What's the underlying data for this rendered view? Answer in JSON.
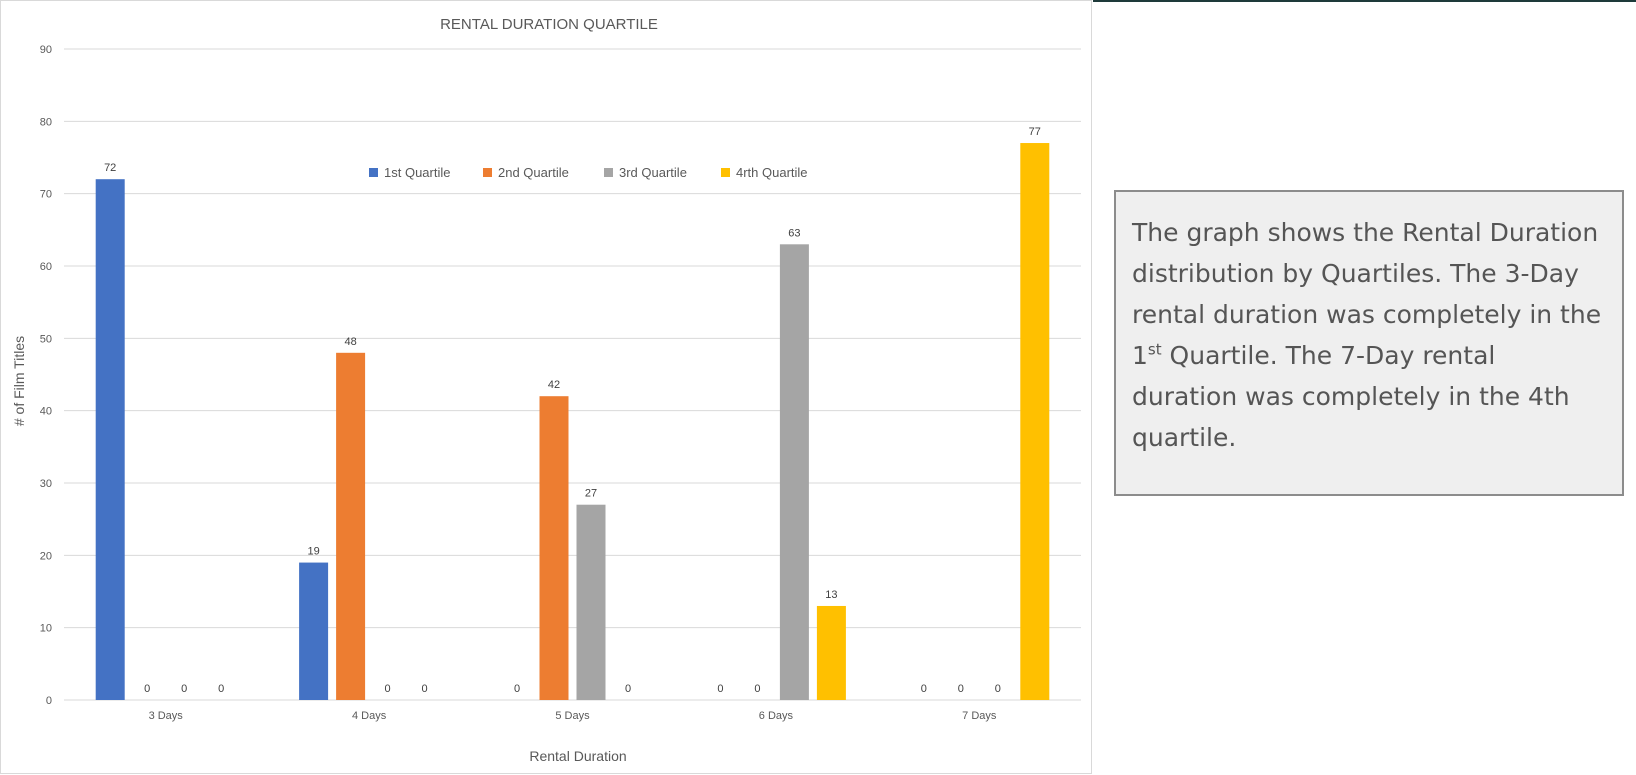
{
  "chart_data": {
    "type": "bar",
    "title": "RENTAL DURATION QUARTILE",
    "xlabel": "Rental Duration",
    "ylabel": "# of Film Titles",
    "ylim": [
      0,
      90
    ],
    "ytick_step": 10,
    "yticks": [
      "0",
      "10",
      "20",
      "30",
      "40",
      "50",
      "60",
      "70",
      "80",
      "90"
    ],
    "grid": true,
    "legend_position": "top-center",
    "categories": [
      "3 Days",
      "4 Days",
      "5 Days",
      "6 Days",
      "7 Days"
    ],
    "series": [
      {
        "name": "1st Quartile",
        "color": "#4472c4",
        "values": [
          72,
          19,
          0,
          0,
          0
        ]
      },
      {
        "name": "2nd Quartile",
        "color": "#ed7d31",
        "values": [
          0,
          48,
          42,
          0,
          0
        ]
      },
      {
        "name": "3rd Quartile",
        "color": "#a5a5a5",
        "values": [
          0,
          0,
          27,
          63,
          0
        ]
      },
      {
        "name": "4rth Quartile",
        "color": "#ffc000",
        "values": [
          0,
          0,
          0,
          13,
          77
        ]
      }
    ]
  },
  "note": {
    "part1": "The graph shows the Rental Duration distribution by Quartiles. The 3-Day rental duration was completely in the 1",
    "sup": "st",
    "part2": " Quartile. The 7-Day rental duration was completely in the 4th quartile."
  }
}
